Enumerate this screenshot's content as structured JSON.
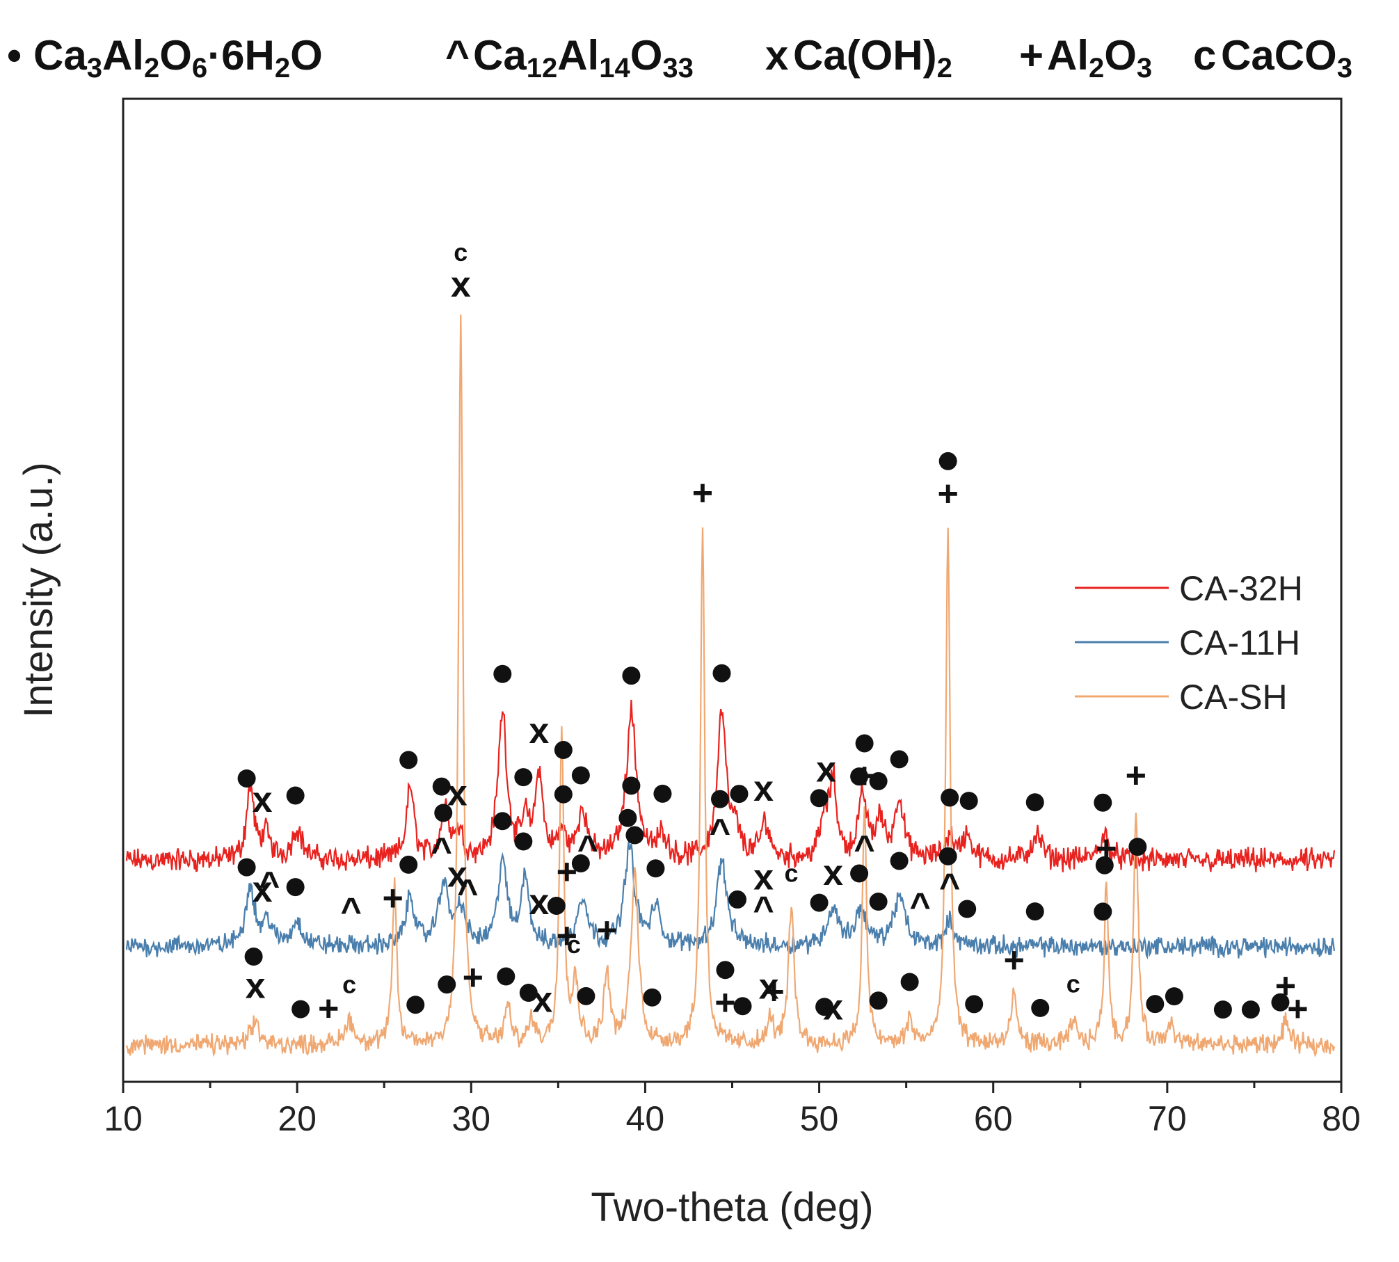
{
  "chart_data": {
    "type": "line",
    "title": "",
    "xlabel": "Two-theta (deg)",
    "ylabel": "Intensity (a.u.)",
    "xlim": [
      10,
      80
    ],
    "x_ticks": [
      10,
      20,
      30,
      40,
      50,
      60,
      70,
      80
    ],
    "y_ticks": "none",
    "grid": false,
    "legend_position": "right-middle",
    "colors": {
      "CA-32H": "#e8231f",
      "CA-11H": "#4a7fad",
      "CA-SH": "#f0a872",
      "axis": "#222222",
      "marker": "#111111"
    },
    "phase_key": [
      {
        "symbol": "•",
        "phase_parts": [
          {
            "t": "Ca"
          },
          {
            "t": "3",
            "sub": true
          },
          {
            "t": "Al"
          },
          {
            "t": "2",
            "sub": true
          },
          {
            "t": "O"
          },
          {
            "t": "6",
            "sub": true
          },
          {
            "t": "·6H"
          },
          {
            "t": "2",
            "sub": true
          },
          {
            "t": "O"
          }
        ]
      },
      {
        "symbol": "^",
        "phase_parts": [
          {
            "t": "Ca"
          },
          {
            "t": "12",
            "sub": true
          },
          {
            "t": "Al"
          },
          {
            "t": "14",
            "sub": true
          },
          {
            "t": "O"
          },
          {
            "t": "33",
            "sub": true
          }
        ]
      },
      {
        "symbol": "x",
        "phase_parts": [
          {
            "t": "Ca(OH)"
          },
          {
            "t": "2",
            "sub": true
          }
        ]
      },
      {
        "symbol": "+",
        "phase_parts": [
          {
            "t": "Al"
          },
          {
            "t": "2",
            "sub": true
          },
          {
            "t": "O"
          },
          {
            "t": "3",
            "sub": true
          }
        ]
      },
      {
        "symbol": "c",
        "phase_parts": [
          {
            "t": "CaCO"
          },
          {
            "t": "3",
            "sub": true
          }
        ]
      }
    ],
    "series": [
      {
        "name": "CA-32H",
        "baseline": 15,
        "noise": 1.2,
        "peaks": [
          [
            17.3,
            6,
            0.25
          ],
          [
            18.2,
            2,
            0.3
          ],
          [
            20,
            2.5,
            0.35
          ],
          [
            26.5,
            6,
            0.25
          ],
          [
            28.5,
            4,
            0.3
          ],
          [
            29.3,
            2,
            0.3
          ],
          [
            31.8,
            12,
            0.3
          ],
          [
            33.1,
            3,
            0.25
          ],
          [
            33.9,
            7,
            0.25
          ],
          [
            35.2,
            2,
            0.3
          ],
          [
            36.4,
            4,
            0.3
          ],
          [
            39.2,
            12,
            0.35
          ],
          [
            41,
            2,
            0.3
          ],
          [
            44.4,
            12,
            0.3
          ],
          [
            45.2,
            2,
            0.3
          ],
          [
            46.9,
            3,
            0.3
          ],
          [
            50.3,
            3,
            0.3
          ],
          [
            50.8,
            6,
            0.25
          ],
          [
            52.5,
            5,
            0.3
          ],
          [
            53.5,
            3,
            0.3
          ],
          [
            54.6,
            5,
            0.3
          ],
          [
            57.5,
            2,
            0.3
          ],
          [
            58.5,
            2,
            0.3
          ],
          [
            62.5,
            2,
            0.35
          ],
          [
            66.4,
            2,
            0.35
          ]
        ],
        "markers": [
          [
            17.1,
            "dot"
          ],
          [
            18.0,
            "x"
          ],
          [
            19.9,
            "dot"
          ],
          [
            26.4,
            "dot"
          ],
          [
            28.3,
            "dot"
          ],
          [
            29.2,
            "x"
          ],
          [
            31.8,
            "dot"
          ],
          [
            33.0,
            "dot"
          ],
          [
            33.9,
            "x"
          ],
          [
            35.3,
            "dot"
          ],
          [
            36.3,
            "dot"
          ],
          [
            39.2,
            "dot"
          ],
          [
            41.0,
            "dot"
          ],
          [
            44.4,
            "dot"
          ],
          [
            45.4,
            "dot"
          ],
          [
            46.8,
            "x"
          ],
          [
            50.0,
            "dot"
          ],
          [
            50.4,
            "x"
          ],
          [
            52.3,
            "dot"
          ],
          [
            53.4,
            "dot"
          ],
          [
            54.6,
            "dot"
          ],
          [
            57.5,
            "dot"
          ],
          [
            58.6,
            "dot"
          ],
          [
            62.4,
            "dot"
          ],
          [
            66.3,
            "dot"
          ]
        ]
      },
      {
        "name": "CA-11H",
        "baseline": 8,
        "noise": 1.0,
        "peaks": [
          [
            17.3,
            5,
            0.3
          ],
          [
            18.3,
            2,
            0.3
          ],
          [
            20,
            2,
            0.35
          ],
          [
            26.5,
            4,
            0.3
          ],
          [
            28.4,
            5,
            0.35
          ],
          [
            29.4,
            3,
            0.3
          ],
          [
            31.8,
            7,
            0.3
          ],
          [
            33.1,
            6,
            0.25
          ],
          [
            36.4,
            4,
            0.35
          ],
          [
            39.1,
            8,
            0.35
          ],
          [
            40.6,
            3,
            0.3
          ],
          [
            44.4,
            7,
            0.35
          ],
          [
            50.8,
            3,
            0.4
          ],
          [
            52.4,
            3,
            0.35
          ],
          [
            54.6,
            4,
            0.4
          ],
          [
            57.5,
            2,
            0.3
          ]
        ],
        "markers": [
          [
            17.1,
            "dot"
          ],
          [
            18.0,
            "x"
          ],
          [
            18.4,
            "caret"
          ],
          [
            19.9,
            "dot"
          ],
          [
            23.1,
            "caret"
          ],
          [
            26.4,
            "dot"
          ],
          [
            28.3,
            "caret"
          ],
          [
            28.4,
            "dot"
          ],
          [
            29.2,
            "x"
          ],
          [
            29.8,
            "caret"
          ],
          [
            31.8,
            "dot"
          ],
          [
            33.0,
            "dot"
          ],
          [
            33.9,
            "x"
          ],
          [
            34.9,
            "dot"
          ],
          [
            36.3,
            "dot"
          ],
          [
            36.7,
            "caret"
          ],
          [
            39.0,
            "dot"
          ],
          [
            39.2,
            "dot"
          ],
          [
            40.6,
            "dot"
          ],
          [
            44.3,
            "caret"
          ],
          [
            44.3,
            "dot"
          ],
          [
            45.3,
            "dot"
          ],
          [
            46.8,
            "caret"
          ],
          [
            46.8,
            "x"
          ],
          [
            50.0,
            "dot"
          ],
          [
            50.8,
            "x"
          ],
          [
            52.3,
            "dot"
          ],
          [
            52.6,
            "caret"
          ],
          [
            53.4,
            "dot"
          ],
          [
            54.6,
            "dot"
          ],
          [
            55.8,
            "caret"
          ],
          [
            57.5,
            "caret"
          ],
          [
            57.4,
            "dot"
          ],
          [
            58.5,
            "dot"
          ],
          [
            62.4,
            "dot"
          ],
          [
            66.3,
            "dot"
          ]
        ]
      },
      {
        "name": "CA-SH",
        "baseline": 0,
        "noise": 1.0,
        "peaks": [
          [
            17.6,
            2,
            0.25
          ],
          [
            23.0,
            2,
            0.3
          ],
          [
            25.6,
            13,
            0.15
          ],
          [
            29.4,
            59,
            0.15
          ],
          [
            32.1,
            3,
            0.2
          ],
          [
            33.5,
            2,
            0.2
          ],
          [
            35.2,
            26,
            0.15
          ],
          [
            36.0,
            5,
            0.2
          ],
          [
            37.8,
            6,
            0.2
          ],
          [
            39.4,
            14,
            0.25
          ],
          [
            43.3,
            42,
            0.15
          ],
          [
            47.2,
            2,
            0.2
          ],
          [
            48.4,
            11,
            0.2
          ],
          [
            52.6,
            19,
            0.15
          ],
          [
            55.2,
            2,
            0.2
          ],
          [
            57.4,
            42,
            0.15
          ],
          [
            61.2,
            4,
            0.2
          ],
          [
            64.6,
            2,
            0.2
          ],
          [
            66.5,
            13,
            0.15
          ],
          [
            68.2,
            19,
            0.15
          ],
          [
            70.2,
            2,
            0.2
          ],
          [
            76.8,
            2,
            0.2
          ]
        ],
        "markers": [
          [
            17.6,
            "x"
          ],
          [
            17.5,
            "dot"
          ],
          [
            20.2,
            "dot"
          ],
          [
            21.8,
            "plus"
          ],
          [
            23.0,
            "c"
          ],
          [
            25.5,
            "plus"
          ],
          [
            26.8,
            "dot"
          ],
          [
            28.6,
            "dot"
          ],
          [
            30.1,
            "plus"
          ],
          [
            29.4,
            "x"
          ],
          [
            29.4,
            "c"
          ],
          [
            32.0,
            "dot"
          ],
          [
            33.3,
            "dot"
          ],
          [
            34.1,
            "x"
          ],
          [
            35.5,
            "plus"
          ],
          [
            35.3,
            "dot"
          ],
          [
            35.9,
            "c"
          ],
          [
            35.5,
            "plus"
          ],
          [
            36.6,
            "dot"
          ],
          [
            37.8,
            "plus"
          ],
          [
            39.4,
            "dot"
          ],
          [
            40.4,
            "dot"
          ],
          [
            43.3,
            "plus"
          ],
          [
            44.6,
            "plus"
          ],
          [
            44.6,
            "dot"
          ],
          [
            45.6,
            "dot"
          ],
          [
            47.1,
            "x"
          ],
          [
            47.4,
            "plus"
          ],
          [
            48.4,
            "c"
          ],
          [
            50.3,
            "dot"
          ],
          [
            50.8,
            "x"
          ],
          [
            53.4,
            "dot"
          ],
          [
            52.6,
            "plus"
          ],
          [
            52.6,
            "dot"
          ],
          [
            55.2,
            "dot"
          ],
          [
            57.4,
            "plus"
          ],
          [
            57.4,
            "dot"
          ],
          [
            58.9,
            "dot"
          ],
          [
            61.2,
            "plus"
          ],
          [
            62.7,
            "dot"
          ],
          [
            64.6,
            "c"
          ],
          [
            66.5,
            "plus"
          ],
          [
            66.4,
            "dot"
          ],
          [
            68.2,
            "plus"
          ],
          [
            68.3,
            "dot"
          ],
          [
            69.3,
            "dot"
          ],
          [
            70.4,
            "dot"
          ],
          [
            73.2,
            "dot"
          ],
          [
            74.8,
            "dot"
          ],
          [
            76.5,
            "dot"
          ],
          [
            76.8,
            "plus"
          ],
          [
            77.5,
            "plus"
          ]
        ]
      }
    ]
  }
}
